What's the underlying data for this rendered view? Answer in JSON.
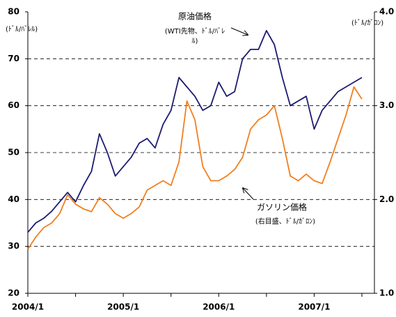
{
  "chart_data": {
    "type": "line",
    "y_unit_label": "(ﾄﾞﾙ/ﾊﾞﾚﾙ)",
    "y2_unit_label": "(ﾄﾞﾙ/ｶﾞﾛﾝ)",
    "annotations": [
      {
        "lines": [
          "原油価格",
          "(WTI先物、ﾄﾞﾙ/ﾊﾞﾚ",
          "ﾙ)"
        ]
      },
      {
        "lines": [
          "ガソリン価格",
          "(右目盛、ﾄﾞﾙ/ｶﾞﾛﾝ)"
        ]
      }
    ],
    "x": [
      "2004/1",
      "2004/2",
      "2004/3",
      "2004/4",
      "2004/5",
      "2004/6",
      "2004/7",
      "2004/8",
      "2004/9",
      "2004/10",
      "2004/11",
      "2004/12",
      "2005/1",
      "2005/2",
      "2005/3",
      "2005/4",
      "2005/5",
      "2005/6",
      "2005/7",
      "2005/8",
      "2005/9",
      "2005/10",
      "2005/11",
      "2005/12",
      "2006/1",
      "2006/2",
      "2006/3",
      "2006/4",
      "2006/5",
      "2006/6",
      "2006/7",
      "2006/8",
      "2006/9",
      "2006/10",
      "2006/11",
      "2006/12",
      "2007/1",
      "2007/2",
      "2007/3",
      "2007/4",
      "2007/5",
      "2007/6",
      "2007/7"
    ],
    "series": [
      {
        "name": "原油価格",
        "color": "#1b1b72",
        "axis": "y",
        "values": [
          33,
          35,
          36,
          37.5,
          39.5,
          41.5,
          39.5,
          43,
          46,
          54,
          50,
          45,
          47,
          49,
          52,
          53,
          51,
          56,
          59,
          66,
          64,
          62,
          59,
          60,
          65,
          62,
          63,
          70,
          72,
          72,
          76,
          73,
          66,
          60,
          61,
          62,
          55,
          59,
          61,
          63,
          64,
          65,
          66
        ]
      },
      {
        "name": "ガソリン価格",
        "color": "#f07f1f",
        "axis": "y2",
        "values": [
          1.47,
          1.6,
          1.7,
          1.75,
          1.85,
          2.05,
          1.95,
          1.9,
          1.87,
          2.02,
          1.95,
          1.85,
          1.8,
          1.85,
          1.92,
          2.1,
          2.15,
          2.2,
          2.15,
          2.4,
          3.05,
          2.85,
          2.35,
          2.2,
          2.2,
          2.25,
          2.32,
          2.45,
          2.75,
          2.85,
          2.9,
          3.0,
          2.65,
          2.25,
          2.2,
          2.27,
          2.2,
          2.17,
          2.4,
          2.65,
          2.9,
          3.2,
          3.07
        ]
      }
    ],
    "ylim": [
      20,
      80
    ],
    "yticks": [
      20,
      30,
      40,
      50,
      60,
      70,
      80
    ],
    "y2lim": [
      1,
      4
    ],
    "y2ticks": [
      {
        "value": 1,
        "label": "1.0"
      },
      {
        "value": 2,
        "label": "2.0"
      },
      {
        "value": 3,
        "label": "3.0"
      },
      {
        "value": 4,
        "label": "4.0"
      }
    ],
    "grid": true
  }
}
